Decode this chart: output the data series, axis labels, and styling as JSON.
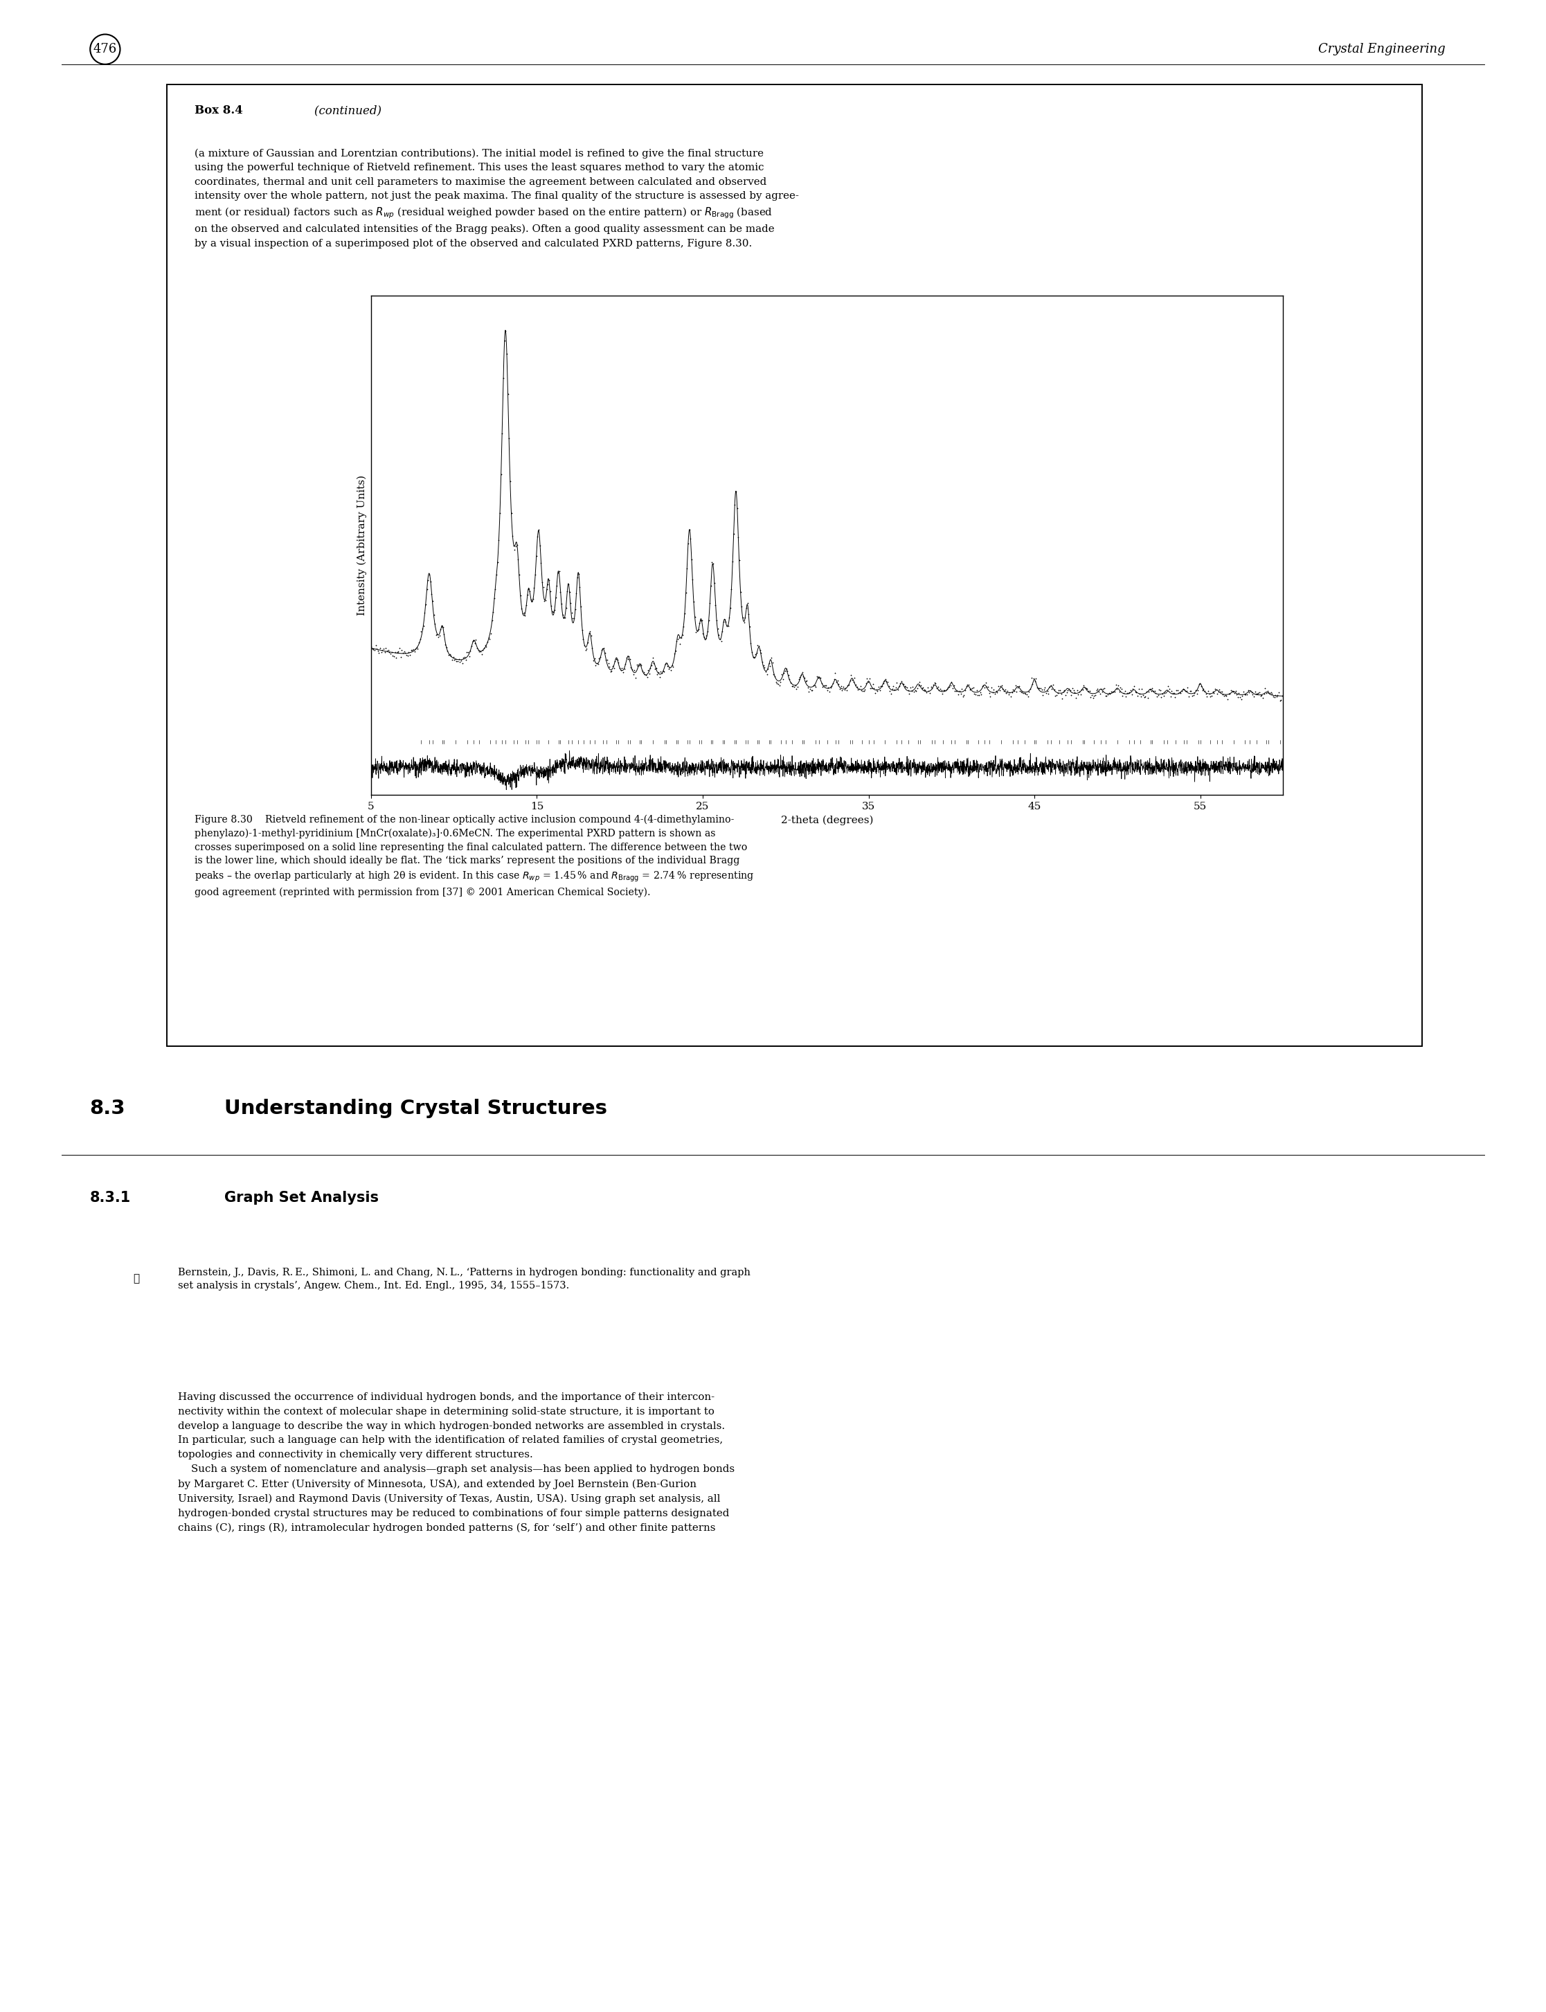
{
  "page_number": "476",
  "header_right": "Crystal Engineering",
  "box_title_bold": "Box 8.4",
  "box_title_italic": "(continued)",
  "xlabel": "2-theta (degrees)",
  "ylabel": "Intensity (Arbitrary Units)",
  "xmin": 5,
  "xmax": 60,
  "xticks": [
    5,
    15,
    25,
    35,
    45,
    55
  ],
  "xtick_labels": [
    "5",
    "15",
    "25",
    "35",
    "45",
    "55"
  ]
}
